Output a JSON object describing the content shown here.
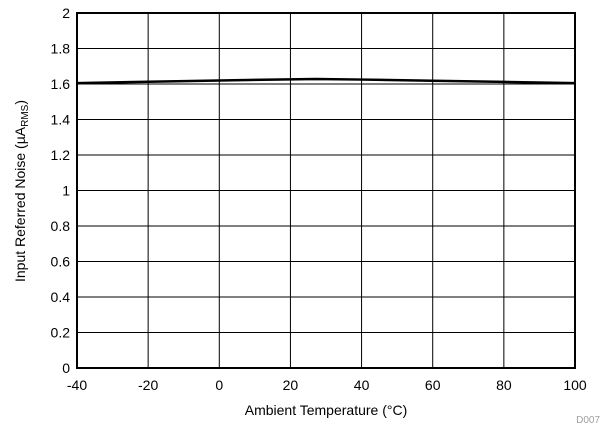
{
  "chart_data": {
    "type": "line",
    "title": "",
    "xlabel": "Ambient Temperature (°C)",
    "ylabel_prefix": "Input Referred Noise (µA",
    "ylabel_sub": "RMS",
    "ylabel_suffix": ")",
    "xlim": [
      -40,
      100
    ],
    "ylim": [
      0,
      2
    ],
    "xticks": [
      -40,
      -20,
      0,
      20,
      40,
      60,
      80,
      100
    ],
    "yticks": [
      0,
      0.2,
      0.4,
      0.6,
      0.8,
      1,
      1.2,
      1.4,
      1.6,
      1.8,
      2
    ],
    "xtick_labels": [
      "-40",
      "-20",
      "0",
      "20",
      "40",
      "60",
      "80",
      "100"
    ],
    "ytick_labels": [
      "0",
      "0.2",
      "0.4",
      "0.6",
      "0.8",
      "1",
      "1.2",
      "1.4",
      "1.6",
      "1.8",
      "2"
    ],
    "grid": true,
    "series": [
      {
        "x": [
          -40,
          -20,
          0,
          27,
          40,
          60,
          80,
          100
        ],
        "values": [
          1.605,
          1.613,
          1.62,
          1.628,
          1.625,
          1.618,
          1.612,
          1.605
        ],
        "color": "#000000"
      }
    ],
    "figure_id": "D007"
  }
}
